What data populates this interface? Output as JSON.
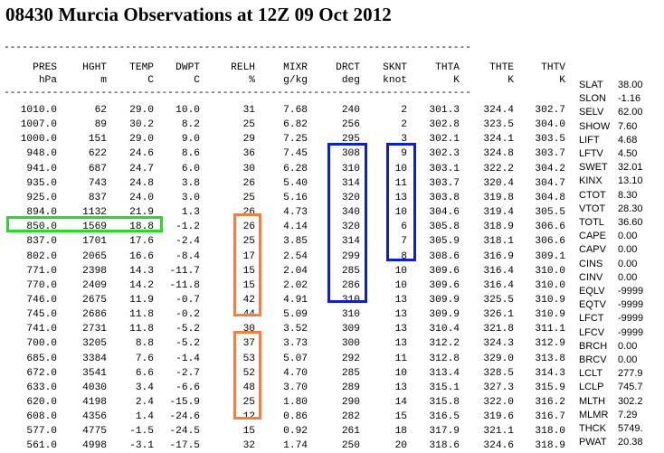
{
  "title": "08430 Murcia Observations at 12Z 09 Oct 2012",
  "dash_line": "-----------------------------------------------------------------------------",
  "header": {
    "names": [
      "PRES",
      "HGHT",
      "TEMP",
      "DWPT",
      "RELH",
      "MIXR",
      "DRCT",
      "SKNT",
      "THTA",
      "THTE",
      "THTV"
    ],
    "units": [
      "hPa",
      "m",
      "C",
      "C",
      "%",
      "g/kg",
      "deg",
      "knot",
      "K",
      "K",
      "K"
    ]
  },
  "rows": [
    [
      "1010.0",
      "62",
      "29.0",
      "10.0",
      "31",
      "7.68",
      "240",
      "2",
      "301.3",
      "324.4",
      "302.7"
    ],
    [
      "1007.0",
      "89",
      "30.2",
      "8.2",
      "25",
      "6.82",
      "256",
      "2",
      "302.8",
      "323.5",
      "304.0"
    ],
    [
      "1000.0",
      "151",
      "29.0",
      "9.0",
      "29",
      "7.25",
      "295",
      "3",
      "302.1",
      "324.1",
      "303.5"
    ],
    [
      "948.0",
      "622",
      "24.6",
      "8.6",
      "36",
      "7.45",
      "308",
      "9",
      "302.3",
      "324.8",
      "303.7"
    ],
    [
      "941.0",
      "687",
      "24.7",
      "6.0",
      "30",
      "6.28",
      "310",
      "10",
      "303.1",
      "322.2",
      "304.2"
    ],
    [
      "935.0",
      "743",
      "24.8",
      "3.8",
      "26",
      "5.40",
      "314",
      "11",
      "303.7",
      "320.4",
      "304.7"
    ],
    [
      "925.0",
      "837",
      "24.0",
      "3.0",
      "25",
      "5.16",
      "320",
      "13",
      "303.8",
      "319.8",
      "304.8"
    ],
    [
      "894.0",
      "1132",
      "21.9",
      "1.3",
      "26",
      "4.73",
      "340",
      "10",
      "304.6",
      "319.4",
      "305.5"
    ],
    [
      "850.0",
      "1569",
      "18.8",
      "-1.2",
      "26",
      "4.14",
      "320",
      "6",
      "305.8",
      "318.9",
      "306.6"
    ],
    [
      "837.0",
      "1701",
      "17.6",
      "-2.4",
      "25",
      "3.85",
      "314",
      "7",
      "305.9",
      "318.1",
      "306.6"
    ],
    [
      "802.0",
      "2065",
      "16.6",
      "-8.4",
      "17",
      "2.54",
      "299",
      "8",
      "308.6",
      "316.9",
      "309.1"
    ],
    [
      "771.0",
      "2398",
      "14.3",
      "-11.7",
      "15",
      "2.04",
      "285",
      "10",
      "309.6",
      "316.4",
      "310.0"
    ],
    [
      "770.0",
      "2409",
      "14.2",
      "-11.8",
      "15",
      "2.02",
      "286",
      "10",
      "309.6",
      "316.4",
      "310.0"
    ],
    [
      "746.0",
      "2675",
      "11.9",
      "-0.7",
      "42",
      "4.91",
      "310",
      "13",
      "309.9",
      "325.5",
      "310.9"
    ],
    [
      "745.0",
      "2686",
      "11.8",
      "-0.2",
      "44",
      "5.09",
      "310",
      "13",
      "309.9",
      "326.1",
      "310.9"
    ],
    [
      "741.0",
      "2731",
      "11.8",
      "-5.2",
      "30",
      "3.52",
      "309",
      "13",
      "310.4",
      "321.8",
      "311.1"
    ],
    [
      "700.0",
      "3205",
      "8.8",
      "-5.2",
      "37",
      "3.73",
      "300",
      "13",
      "312.2",
      "324.3",
      "312.9"
    ],
    [
      "685.0",
      "3384",
      "7.6",
      "-1.4",
      "53",
      "5.07",
      "292",
      "11",
      "312.8",
      "329.0",
      "313.8"
    ],
    [
      "672.0",
      "3541",
      "6.6",
      "-2.7",
      "52",
      "4.70",
      "285",
      "10",
      "313.4",
      "328.5",
      "314.3"
    ],
    [
      "633.0",
      "4030",
      "3.4",
      "-6.6",
      "48",
      "3.70",
      "289",
      "13",
      "315.1",
      "327.3",
      "315.9"
    ],
    [
      "620.0",
      "4198",
      "2.4",
      "-15.9",
      "25",
      "1.80",
      "290",
      "14",
      "315.8",
      "322.0",
      "316.2"
    ],
    [
      "608.0",
      "4356",
      "1.4",
      "-24.6",
      "12",
      "0.86",
      "282",
      "15",
      "316.5",
      "319.6",
      "316.7"
    ],
    [
      "577.0",
      "4775",
      "-1.5",
      "-24.5",
      "15",
      "0.92",
      "261",
      "18",
      "317.9",
      "321.1",
      "318.0"
    ],
    [
      "561.0",
      "4998",
      "-3.1",
      "-17.5",
      "32",
      "1.74",
      "250",
      "20",
      "318.6",
      "324.6",
      "318.9"
    ]
  ],
  "indices": [
    {
      "label": "SLAT",
      "value": "38.00"
    },
    {
      "label": "SLON",
      "value": "-1.16"
    },
    {
      "label": "SELV",
      "value": "62.00"
    },
    {
      "label": "SHOW",
      "value": "7.60"
    },
    {
      "label": "LIFT",
      "value": "4.68"
    },
    {
      "label": "LFTV",
      "value": "4.50"
    },
    {
      "label": "SWET",
      "value": "32.01"
    },
    {
      "label": "KINX",
      "value": "13.10"
    },
    {
      "label": "CTOT",
      "value": "8.30"
    },
    {
      "label": "VTOT",
      "value": "28.30"
    },
    {
      "label": "TOTL",
      "value": "36.60"
    },
    {
      "label": "CAPE",
      "value": "0.00"
    },
    {
      "label": "CAPV",
      "value": "0.00"
    },
    {
      "label": "CINS",
      "value": "0.00"
    },
    {
      "label": "CINV",
      "value": "0.00"
    },
    {
      "label": "EQLV",
      "value": "-9999"
    },
    {
      "label": "EQTV",
      "value": "-9999"
    },
    {
      "label": "LFCT",
      "value": "-9999"
    },
    {
      "label": "LFCV",
      "value": "-9999"
    },
    {
      "label": "BRCH",
      "value": "0.00"
    },
    {
      "label": "BRCV",
      "value": "0.00"
    },
    {
      "label": "LCLT",
      "value": "277.9"
    },
    {
      "label": "LCLP",
      "value": "745.7"
    },
    {
      "label": "MLTH",
      "value": "302.2"
    },
    {
      "label": "MLMR",
      "value": "7.29"
    },
    {
      "label": "THCK",
      "value": "5749."
    },
    {
      "label": "PWAT",
      "value": "20.38"
    }
  ],
  "highlight_colors": {
    "green": "#22dd22",
    "blue": "#1020c8",
    "orange": "#f08040"
  }
}
